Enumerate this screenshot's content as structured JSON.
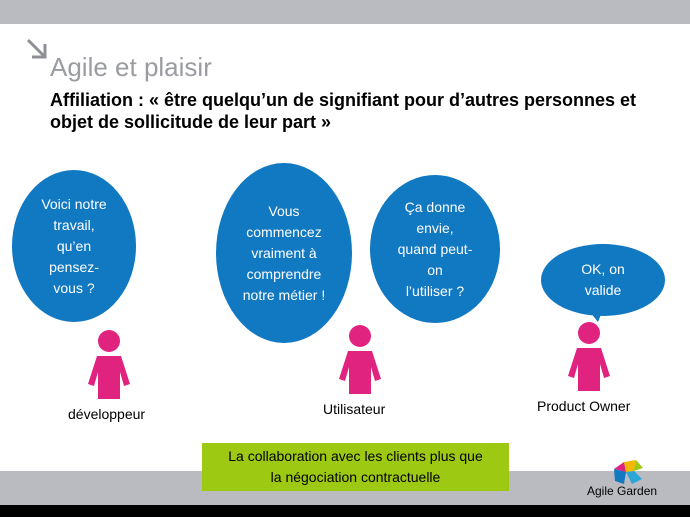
{
  "slide": {
    "title": "Agile et plaisir",
    "subtitle": "Affiliation : « être quelqu’un de signifiant pour d’autres personnes et objet de sollicitude de leur part »"
  },
  "bubbles": [
    {
      "lines": [
        "Voici notre",
        "travail,",
        "qu’en",
        "pensez-",
        "vous ?"
      ]
    },
    {
      "lines": [
        "Vous",
        "commencez",
        "vraiment à",
        "comprendre",
        "notre métier !"
      ]
    },
    {
      "lines": [
        "Ça donne",
        "envie,",
        "quand peut-",
        "on",
        "l’utiliser ?"
      ]
    },
    {
      "lines": [
        "OK, on",
        "valide"
      ]
    }
  ],
  "roles": [
    "développeur",
    "Utilisateur",
    "Product Owner"
  ],
  "callout": {
    "lines": [
      "La collaboration avec les clients plus que",
      "la négociation contractuelle"
    ]
  },
  "logo": {
    "text": "Agile Garden"
  },
  "colors": {
    "bubble": "#1178c2",
    "person": "#e0237f",
    "callout": "#9ec913",
    "bars": "#b9bbc0"
  }
}
